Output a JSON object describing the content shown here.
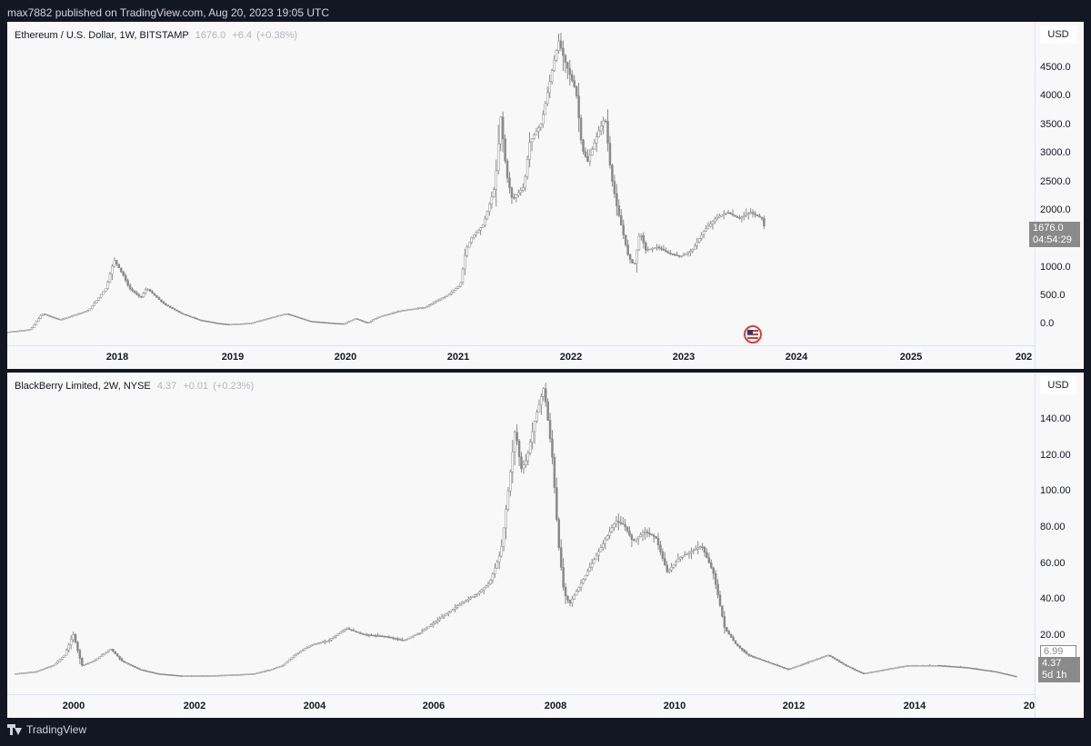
{
  "header": {
    "published_text": "max7882 published on TradingView.com, Aug 20, 2023 19:05 UTC"
  },
  "footer": {
    "brand": "TradingView"
  },
  "panels": [
    {
      "symbol_title": "Ethereum / U.S. Dollar, 1W, BITSTAMP",
      "last_value": "1676.0",
      "change": "+6.4",
      "change_pct": "(+0.38%)",
      "currency_button": "USD",
      "price_axis_labels": [
        "4500.0",
        "4000.0",
        "3500.0",
        "3000.0",
        "2500.0",
        "2000.0",
        "1000.0",
        "500.0",
        "0.0"
      ],
      "time_axis_labels": [
        "2018",
        "2019",
        "2020",
        "2021",
        "2022",
        "2023",
        "2024",
        "2025",
        "202"
      ],
      "last_price_tag": {
        "price": "1676.0",
        "countdown": "04:54:29"
      }
    },
    {
      "symbol_title": "BlackBerry Limited, 2W, NYSE",
      "last_value": "4.37",
      "change": "+0.01",
      "change_pct": "(+0.23%)",
      "currency_button": "USD",
      "price_axis_labels": [
        "140.00",
        "120.00",
        "100.00",
        "80.00",
        "60.00",
        "40.00",
        "20.00"
      ],
      "time_axis_labels": [
        "2000",
        "2002",
        "2004",
        "2006",
        "2008",
        "2010",
        "2012",
        "2014",
        "20"
      ],
      "outline_tag": "6.99",
      "last_price_tag": {
        "price": "4.37",
        "countdown": "5d 1h"
      }
    }
  ],
  "chart_data": [
    {
      "type": "candlestick",
      "title": "Ethereum / U.S. Dollar, 1W, BITSTAMP",
      "ylabel": "USD",
      "ylim": [
        -200,
        4900
      ],
      "xlim": [
        2017.1,
        2025.95
      ],
      "series": [
        {
          "name": "Ethereum / U.S. Dollar",
          "x": [
            2017.1,
            2017.3,
            2017.4,
            2017.55,
            2017.8,
            2017.95,
            2018.02,
            2018.1,
            2018.15,
            2018.25,
            2018.3,
            2018.45,
            2018.6,
            2018.75,
            2018.9,
            2019.0,
            2019.2,
            2019.5,
            2019.7,
            2019.9,
            2020.0,
            2020.1,
            2020.2,
            2020.3,
            2020.5,
            2020.7,
            2020.9,
            2021.0,
            2021.05,
            2021.1,
            2021.2,
            2021.3,
            2021.35,
            2021.4,
            2021.45,
            2021.55,
            2021.6,
            2021.7,
            2021.8,
            2021.85,
            2021.9,
            2022.0,
            2022.05,
            2022.1,
            2022.2,
            2022.25,
            2022.3,
            2022.35,
            2022.45,
            2022.5,
            2022.55,
            2022.6,
            2022.7,
            2022.8,
            2022.9,
            2023.0,
            2023.1,
            2023.2,
            2023.3,
            2023.4,
            2023.5,
            2023.6,
            2023.62
          ],
          "y": [
            10,
            50,
            300,
            200,
            350,
            700,
            1150,
            900,
            700,
            550,
            700,
            450,
            300,
            200,
            150,
            130,
            150,
            300,
            180,
            150,
            140,
            220,
            150,
            250,
            350,
            400,
            600,
            750,
            1300,
            1500,
            1700,
            2300,
            3400,
            2500,
            2100,
            2300,
            3000,
            3300,
            4200,
            4600,
            4300,
            3800,
            2900,
            2700,
            3200,
            3400,
            2500,
            2000,
            1200,
            1050,
            1600,
            1300,
            1350,
            1250,
            1200,
            1300,
            1600,
            1800,
            1900,
            1800,
            1900,
            1800,
            1676
          ]
        }
      ]
    },
    {
      "type": "candlestick",
      "title": "BlackBerry Limited, 2W, NYSE",
      "ylabel": "USD",
      "ylim": [
        -4,
        152
      ],
      "xlim": [
        1999.0,
        2016.9
      ],
      "series": [
        {
          "name": "BlackBerry Limited",
          "x": [
            1999.15,
            1999.5,
            1999.8,
            2000.0,
            2000.15,
            2000.3,
            2000.5,
            2000.8,
            2001.0,
            2001.3,
            2001.6,
            2002.0,
            2002.5,
            2003.0,
            2003.3,
            2003.6,
            2003.8,
            2004.0,
            2004.3,
            2004.6,
            2004.9,
            2005.2,
            2005.6,
            2005.9,
            2006.2,
            2006.5,
            2006.9,
            2007.2,
            2007.4,
            2007.6,
            2007.75,
            2007.85,
            2007.95,
            2008.05,
            2008.2,
            2008.35,
            2008.5,
            2008.6,
            2008.7,
            2008.8,
            2009.0,
            2009.2,
            2009.4,
            2009.6,
            2009.75,
            2009.9,
            2010.1,
            2010.3,
            2010.5,
            2010.7,
            2010.9,
            2011.1,
            2011.3,
            2011.5,
            2011.7,
            2011.9,
            2012.2,
            2012.6,
            2013.0,
            2013.3,
            2013.6,
            2013.9,
            2014.3,
            2014.7,
            2015.2,
            2015.7,
            2016.2,
            2016.6
          ],
          "y": [
            6,
            7,
            10,
            15,
            25,
            10,
            12,
            18,
            12,
            8,
            6,
            5,
            5,
            5.5,
            6,
            8,
            10,
            15,
            20,
            22,
            28,
            25,
            24,
            22,
            26,
            32,
            40,
            45,
            50,
            65,
            100,
            125,
            105,
            110,
            130,
            145,
            110,
            70,
            45,
            40,
            50,
            60,
            70,
            80,
            78,
            70,
            75,
            72,
            55,
            62,
            65,
            68,
            55,
            28,
            20,
            15,
            12,
            8,
            12,
            15,
            10,
            6,
            8,
            10,
            10,
            9,
            7,
            4.37
          ]
        }
      ]
    }
  ],
  "colors": {
    "candle": "#8a8a8a",
    "panel_bg": "#f8f8f8",
    "app_bg": "#131722",
    "flag_ring": "#e53935"
  }
}
